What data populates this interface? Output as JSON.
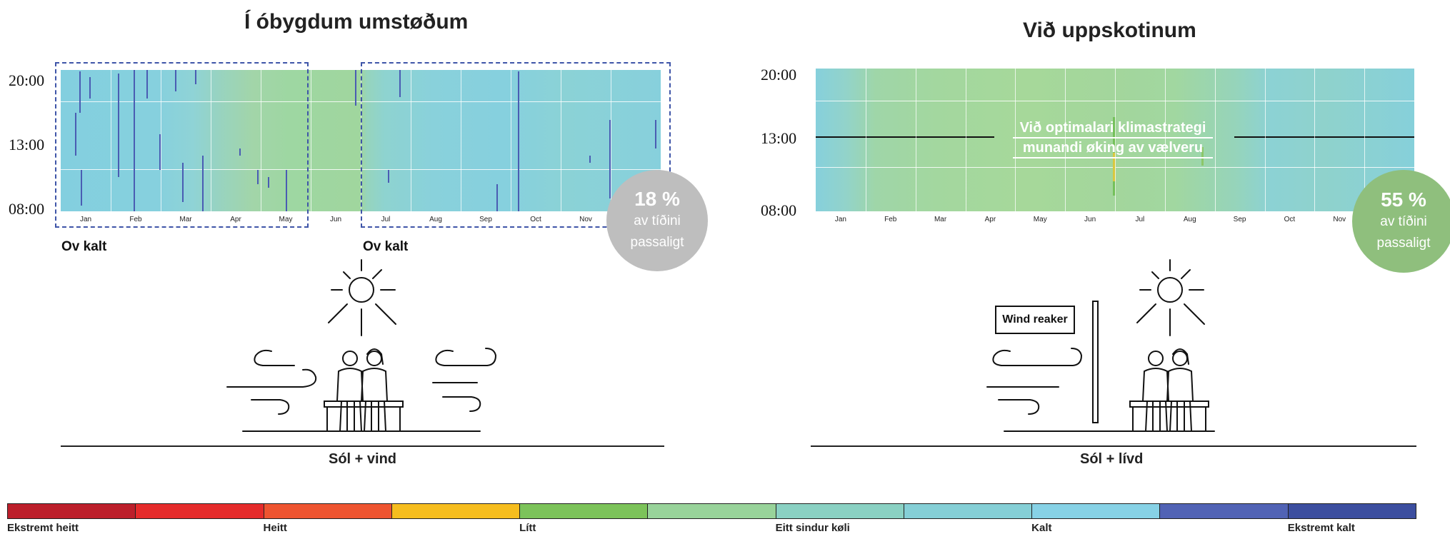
{
  "left_panel": {
    "title": "Í óbygdum umstøðum",
    "y_ticks": [
      "20:00",
      "13:00",
      "08:00"
    ],
    "months": [
      "Jan",
      "Feb",
      "Mar",
      "Apr",
      "May",
      "Jun",
      "Jul",
      "Aug",
      "Sep",
      "Oct",
      "Nov"
    ],
    "zone_labels": [
      "Ov kalt",
      "Ov kalt"
    ],
    "badge": {
      "percent": "18 %",
      "line1": "av tíðini",
      "line2": "passaligt",
      "color": "#bebebe"
    },
    "caption": "Sól + vind"
  },
  "right_panel": {
    "title": "Við uppskotinum",
    "y_ticks": [
      "20:00",
      "13:00",
      "08:00"
    ],
    "months": [
      "Jan",
      "Feb",
      "Mar",
      "Apr",
      "May",
      "Jun",
      "Jul",
      "Aug",
      "Sep",
      "Oct",
      "Nov"
    ],
    "annotation_line1": "Við optimalari klimastrategi",
    "annotation_line2": "munandi øking av vælveru",
    "badge": {
      "percent": "55 %",
      "line1": "av tíðini",
      "line2": "passaligt",
      "color": "#8fbf7d"
    },
    "wind_breaker_label": "Wind   reaker",
    "caption": "Sól + lívd"
  },
  "legend": {
    "colors": [
      "#bc1f2b",
      "#e52b2b",
      "#ee5430",
      "#f6bd1e",
      "#7cc35a",
      "#98d39a",
      "#8ad1c3",
      "#85cfd6",
      "#87d2e6",
      "#5163b5",
      "#3c4e9f"
    ],
    "labels": [
      {
        "text": "Ekstremt heitt",
        "anchor": 0
      },
      {
        "text": "Heitt",
        "anchor": 2
      },
      {
        "text": "Lítt",
        "anchor": 4
      },
      {
        "text": "Eitt sindur køli",
        "anchor": 6
      },
      {
        "text": "Kalt",
        "anchor": 8
      },
      {
        "text": "Ekstremt kalt",
        "anchor": 10
      }
    ]
  }
}
